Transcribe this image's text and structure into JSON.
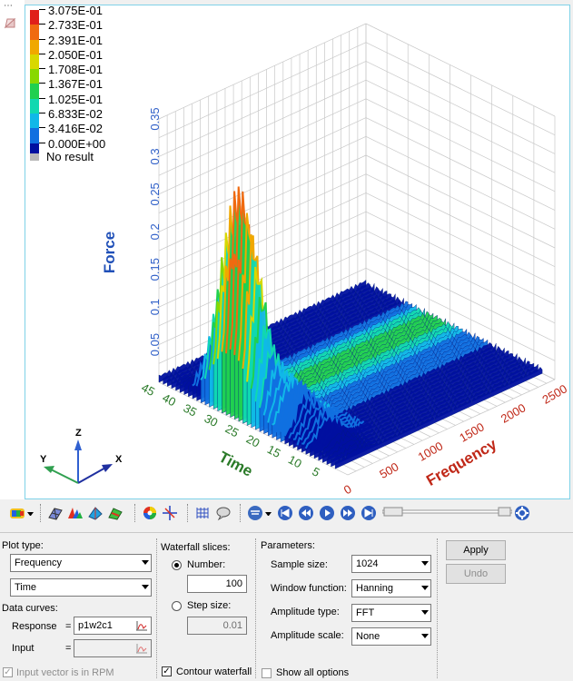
{
  "legend": {
    "entries": [
      {
        "value": "3.075E-01",
        "color": "#e0201a"
      },
      {
        "value": "2.733E-01",
        "color": "#f06a10"
      },
      {
        "value": "2.391E-01",
        "color": "#f0a800"
      },
      {
        "value": "2.050E-01",
        "color": "#d8d800"
      },
      {
        "value": "1.708E-01",
        "color": "#88d800"
      },
      {
        "value": "1.367E-01",
        "color": "#20d050"
      },
      {
        "value": "1.025E-01",
        "color": "#10d8b0"
      },
      {
        "value": "6.833E-02",
        "color": "#10b8e8"
      },
      {
        "value": "3.416E-02",
        "color": "#1070e0"
      },
      {
        "value": "0.000E+00",
        "color": "#0010a0"
      }
    ],
    "no_result": "No result"
  },
  "chart_data": {
    "type": "surface3d",
    "zlabel": "Force",
    "ylabel": "Time",
    "xlabel": "Frequency",
    "zticks": [
      "0.35",
      "0.3",
      "0.25",
      "0.2",
      "0.15",
      "0.1",
      "0.05"
    ],
    "yticks": [
      "45",
      "40",
      "35",
      "30",
      "25",
      "20",
      "15",
      "10",
      "5"
    ],
    "xticks": [
      "0",
      "500",
      "1000",
      "1500",
      "2000",
      "2500"
    ],
    "zlim": [
      0,
      0.35
    ],
    "xlim": [
      0,
      2500
    ],
    "ylim": [
      0,
      45
    ],
    "peak": {
      "frequency": 120,
      "time": 28,
      "force": 0.3075
    },
    "axis_triad": {
      "x": "X",
      "y": "Y",
      "z": "Z"
    }
  },
  "panel": {
    "plot_type_label": "Plot type:",
    "plot_type_value": "Frequency",
    "second_axis_value": "Time",
    "data_curves_label": "Data curves:",
    "response_label": "Response",
    "response_eq": "=",
    "response_value": "p1w2c1",
    "input_label": "Input",
    "input_eq": "=",
    "input_value": "",
    "rpm_label": "Input vector is in RPM",
    "waterfall_label": "Waterfall slices:",
    "number_label": "Number:",
    "number_value": "100",
    "step_label": "Step size:",
    "step_value": "0.01",
    "contour_label": "Contour waterfall",
    "contour_check": "✓",
    "rpm_check": "✓",
    "params_label": "Parameters:",
    "sample_size_label": "Sample size:",
    "sample_size_value": "1024",
    "window_label": "Window function:",
    "window_value": "Hanning",
    "amp_type_label": "Amplitude type:",
    "amp_type_value": "FFT",
    "amp_scale_label": "Amplitude scale:",
    "amp_scale_value": "None",
    "show_all_label": "Show all options",
    "apply_label": "Apply",
    "undo_label": "Undo"
  },
  "toolbar": {
    "icons": [
      "contour-plot-icon",
      "dropdown-arrow-icon",
      "mesh-icon",
      "waterfall-icon",
      "surface-icon",
      "stack-icon",
      "color-wheel-icon",
      "crosshair-icon",
      "grid-icon",
      "note-icon",
      "filter-icon",
      "first-frame-icon",
      "rewind-icon",
      "play-icon",
      "fast-forward-icon",
      "last-frame-icon",
      "animation-slider",
      "settings-icon"
    ]
  }
}
